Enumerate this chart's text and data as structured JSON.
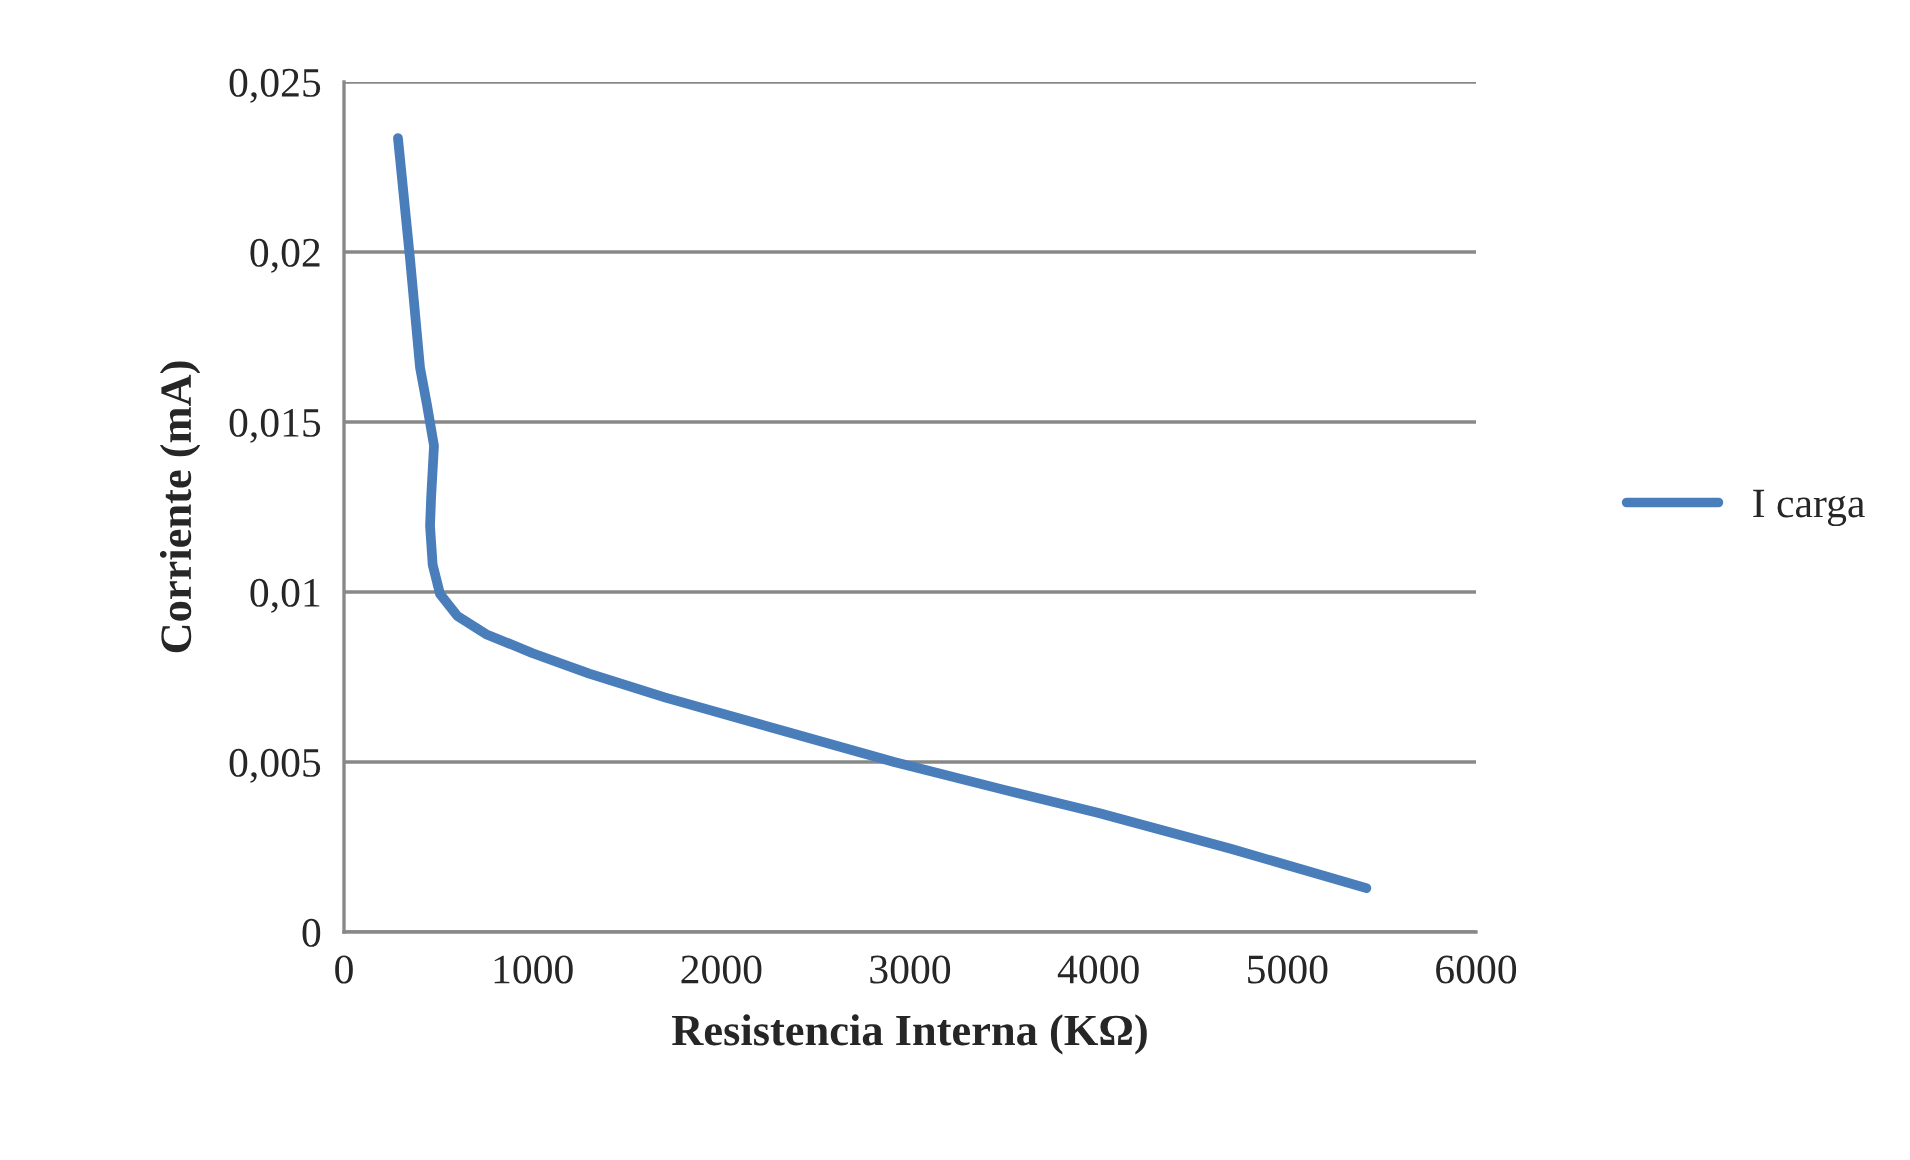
{
  "chart_data": {
    "type": "line",
    "xlabel": "Resistencia Interna (KΩ)",
    "ylabel": "Corriente (mA)",
    "series": [
      {
        "name": "I carga",
        "color": "#4a7ebb",
        "x": [
          286,
          350,
          403,
          440,
          477,
          462,
          456,
          470,
          509,
          600,
          753,
          1000,
          1300,
          1700,
          2237,
          2916,
          3500,
          4000,
          4700,
          5419
        ],
        "values": [
          0.02335,
          0.0198,
          0.0166,
          0.0155,
          0.0143,
          0.0128,
          0.01194,
          0.0108,
          0.00994,
          0.0093,
          0.00876,
          0.0082,
          0.0076,
          0.0069,
          0.00606,
          0.005,
          0.00418,
          0.0035,
          0.00245,
          0.00129
        ]
      }
    ],
    "xlim": [
      0,
      6000
    ],
    "xticks": [
      0,
      1000,
      2000,
      3000,
      4000,
      5000,
      6000
    ],
    "ylim": [
      0,
      0.025
    ],
    "yticks": [
      {
        "value": 0,
        "label": "0"
      },
      {
        "value": 0.005,
        "label": "0,005"
      },
      {
        "value": 0.01,
        "label": "0,01"
      },
      {
        "value": 0.015,
        "label": "0,015"
      },
      {
        "value": 0.02,
        "label": "0,02"
      },
      {
        "value": 0.025,
        "label": "0,025"
      }
    ],
    "grid": "y",
    "legend": "right",
    "marker": "none",
    "line_style": "solid"
  }
}
